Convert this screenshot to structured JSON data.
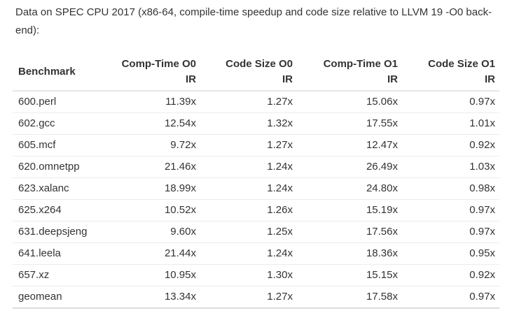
{
  "intro": {
    "text": "Data on SPEC CPU 2017 (x86-64, compile-time speedup and code size relative to LLVM 19 -O0 back-end):"
  },
  "table": {
    "headers": [
      "Benchmark",
      "Comp-Time O0\nIR",
      "Code Size O0\nIR",
      "Comp-Time O1\nIR",
      "Code Size O1\nIR"
    ],
    "rows": [
      {
        "benchmark": "600.perl",
        "values": [
          "11.39x",
          "1.27x",
          "15.06x",
          "0.97x"
        ]
      },
      {
        "benchmark": "602.gcc",
        "values": [
          "12.54x",
          "1.32x",
          "17.55x",
          "1.01x"
        ]
      },
      {
        "benchmark": "605.mcf",
        "values": [
          "9.72x",
          "1.27x",
          "12.47x",
          "0.92x"
        ]
      },
      {
        "benchmark": "620.omnetpp",
        "values": [
          "21.46x",
          "1.24x",
          "26.49x",
          "1.03x"
        ]
      },
      {
        "benchmark": "623.xalanc",
        "values": [
          "18.99x",
          "1.24x",
          "24.80x",
          "0.98x"
        ]
      },
      {
        "benchmark": "625.x264",
        "values": [
          "10.52x",
          "1.26x",
          "15.19x",
          "0.97x"
        ]
      },
      {
        "benchmark": "631.deepsjeng",
        "values": [
          "9.60x",
          "1.25x",
          "17.56x",
          "0.97x"
        ]
      },
      {
        "benchmark": "641.leela",
        "values": [
          "21.44x",
          "1.24x",
          "18.36x",
          "0.95x"
        ]
      },
      {
        "benchmark": "657.xz",
        "values": [
          "10.95x",
          "1.30x",
          "15.15x",
          "0.92x"
        ]
      },
      {
        "benchmark": "geomean",
        "values": [
          "13.34x",
          "1.27x",
          "17.58x",
          "0.97x"
        ]
      }
    ],
    "colors": {
      "text": "#333333",
      "header_rule": "#e6e6e6",
      "row_rule": "#ececec",
      "bottom_rule": "#dcdcdc"
    }
  }
}
